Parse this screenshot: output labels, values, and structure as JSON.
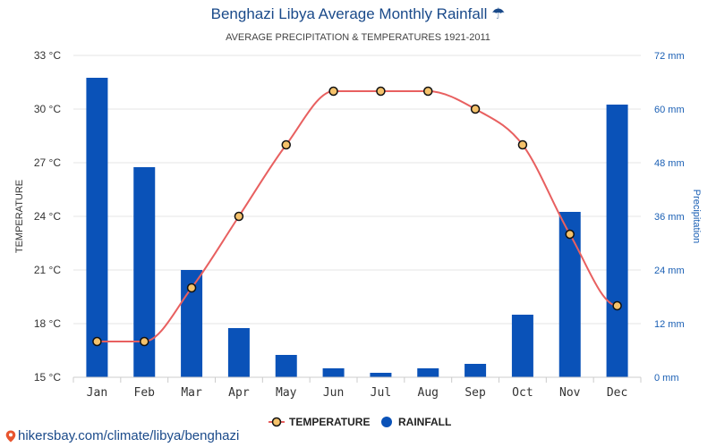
{
  "header": {
    "title": "Benghazi Libya Average Monthly Rainfall",
    "title_icon": "umbrella-icon",
    "subtitle": "AVERAGE PRECIPITATION & TEMPERATURES 1921-2011"
  },
  "footer": {
    "link_text": "hikersbay.com/climate/libya/benghazi",
    "icon": "map-pin-icon"
  },
  "colors": {
    "bar": "#0a52b8",
    "line": "#e86060",
    "marker_fill": "#f5c26b",
    "axis_left_text": "#333333",
    "axis_right_text": "#1a5fb4",
    "grid": "#e6e6e6"
  },
  "chart_data": {
    "type": "bar+line",
    "categories": [
      "Jan",
      "Feb",
      "Mar",
      "Apr",
      "May",
      "Jun",
      "Jul",
      "Aug",
      "Sep",
      "Oct",
      "Nov",
      "Dec"
    ],
    "series": [
      {
        "name": "RAINFALL",
        "type": "bar",
        "axis": "right",
        "unit": "mm",
        "values": [
          67,
          47,
          24,
          11,
          5,
          2,
          1,
          2,
          3,
          14,
          37,
          61
        ]
      },
      {
        "name": "TEMPERATURE",
        "type": "line",
        "axis": "left",
        "unit": "°C",
        "values": [
          17,
          17,
          20,
          24,
          28,
          31,
          31,
          31,
          30,
          28,
          23,
          19
        ]
      }
    ],
    "y_left": {
      "label": "TEMPERATURE",
      "min": 15,
      "max": 33,
      "ticks": [
        "33 °C",
        "30 °C",
        "27 °C",
        "24 °C",
        "21 °C",
        "18 °C",
        "15 °C"
      ]
    },
    "y_right": {
      "label": "Precipitation",
      "min": 0,
      "max": 72,
      "ticks": [
        "72 mm",
        "60 mm",
        "48 mm",
        "36 mm",
        "24 mm",
        "12 mm",
        "0 mm"
      ]
    },
    "grid": true,
    "legend": {
      "position": "bottom",
      "items": [
        "TEMPERATURE",
        "RAINFALL"
      ]
    }
  }
}
